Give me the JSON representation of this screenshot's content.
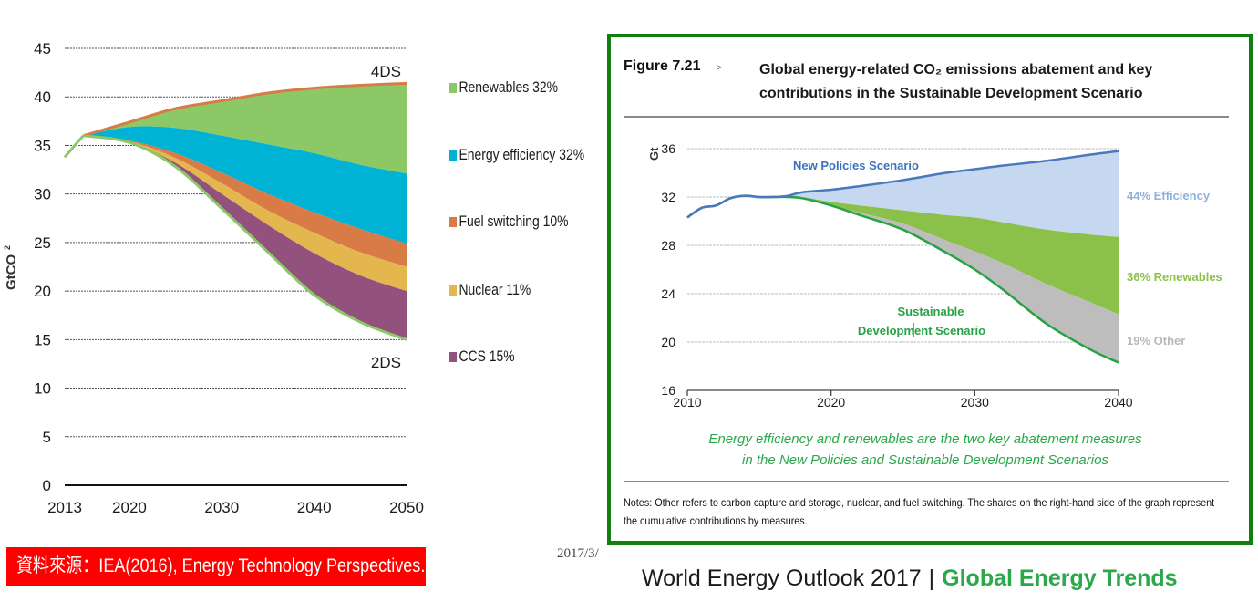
{
  "left_chart_source": "資料來源：IEA(2016), Energy Technology Perspectives.",
  "date_stamp": "2017/3/",
  "right_figure": {
    "figure_number": "Figure 7.21",
    "figure_arrow": "▹",
    "title_line1": "Global energy-related CO₂ emissions abatement and key",
    "title_line2": "contributions in the Sustainable Development Scenario",
    "caption_line1": "Energy efficiency and renewables are the two key abatement measures",
    "caption_line2": "in the New Policies and Sustainable Development Scenarios",
    "notes_text": "Notes: Other refers to carbon capture and storage, nuclear, and fuel switching. The shares on the right-hand side of the graph represent the cumulative contributions by measures."
  },
  "footer": {
    "left": "World Energy Outlook 2017",
    "separator": "|",
    "right": "Global Energy Trends"
  },
  "colors": {
    "renewables_left": "#8cc866",
    "efficiency_left": "#00b2d3",
    "fuel_switching": "#d97b46",
    "nuclear": "#e3b74e",
    "ccs": "#93517e",
    "frame_green": "#118011",
    "nps_line": "#4a78bd",
    "efficiency_right": "#c5d8ef",
    "renewables_right": "#8bc14a",
    "other_right": "#bdbdbd",
    "sds_line": "#27a244",
    "source_red": "#ff0000"
  },
  "chart_data": [
    {
      "type": "area",
      "title": "",
      "xlabel": "",
      "ylabel": "GtCO2",
      "xlim": [
        2013,
        2050
      ],
      "ylim": [
        0,
        45
      ],
      "yticks": [
        0,
        5,
        10,
        15,
        20,
        25,
        30,
        35,
        40,
        45
      ],
      "xticks": [
        2013,
        2020,
        2030,
        2040,
        2050
      ],
      "grid": true,
      "legend_position": "right",
      "x": [
        2013,
        2015,
        2020,
        2025,
        2030,
        2035,
        2040,
        2045,
        2050
      ],
      "historical": {
        "x": [
          2013,
          2015
        ],
        "values": [
          33.8,
          36.0
        ]
      },
      "scenario_lines": [
        {
          "name": "4DS",
          "values": [
            null,
            36.0,
            37.4,
            38.8,
            39.6,
            40.4,
            40.9,
            41.2,
            41.4
          ]
        },
        {
          "name": "2DS",
          "values": [
            null,
            36.0,
            35.3,
            32.8,
            28.5,
            24.0,
            19.6,
            16.8,
            15.0
          ]
        }
      ],
      "series_boundaries_note": "stacked bands between 4DS (top) and 2DS (bottom); values are upper/lower bounds of each band in GtCO2",
      "series": [
        {
          "name": "Renewables 32%",
          "key": "renewables",
          "upper": [
            null,
            36.0,
            37.4,
            38.8,
            39.6,
            40.4,
            40.9,
            41.2,
            41.4
          ],
          "lower": [
            null,
            36.0,
            36.9,
            36.8,
            36.0,
            35.1,
            34.2,
            33.0,
            32.1
          ]
        },
        {
          "name": "Energy efficiency 32%",
          "key": "efficiency",
          "upper": [
            null,
            36.0,
            36.9,
            36.8,
            36.0,
            35.1,
            34.2,
            33.0,
            32.1
          ],
          "lower": [
            null,
            36.0,
            35.5,
            34.2,
            32.2,
            30.0,
            28.1,
            26.4,
            24.9
          ]
        },
        {
          "name": "Fuel switching 10%",
          "key": "fuel_switching",
          "upper": [
            null,
            36.0,
            35.5,
            34.2,
            32.2,
            30.0,
            28.1,
            26.4,
            24.9
          ],
          "lower": [
            null,
            36.0,
            35.4,
            33.7,
            31.1,
            28.3,
            26.0,
            24.0,
            22.5
          ]
        },
        {
          "name": "Nuclear 11%",
          "key": "nuclear",
          "upper": [
            null,
            36.0,
            35.4,
            33.7,
            31.1,
            28.3,
            26.0,
            24.0,
            22.5
          ],
          "lower": [
            null,
            36.0,
            35.3,
            33.2,
            30.0,
            26.8,
            23.9,
            21.6,
            20.0
          ]
        },
        {
          "name": "CCS 15%",
          "key": "ccs",
          "upper": [
            null,
            36.0,
            35.3,
            33.2,
            30.0,
            26.8,
            23.9,
            21.6,
            20.0
          ],
          "lower": [
            null,
            36.0,
            35.3,
            32.8,
            28.5,
            24.0,
            19.6,
            16.8,
            15.0
          ]
        }
      ],
      "annotations": [
        "4DS",
        "2DS"
      ]
    },
    {
      "type": "area",
      "title": "Global energy-related CO₂ emissions abatement and key contributions in the Sustainable Development Scenario",
      "xlabel": "",
      "ylabel": "Gt",
      "xlim": [
        2010,
        2040
      ],
      "ylim": [
        16,
        36
      ],
      "yticks": [
        16,
        20,
        24,
        28,
        32,
        36
      ],
      "xticks": [
        2010,
        2020,
        2030,
        2040
      ],
      "grid": true,
      "x": [
        2010,
        2011,
        2012,
        2013,
        2014,
        2015,
        2016,
        2017,
        2018,
        2020,
        2022,
        2025,
        2028,
        2030,
        2032,
        2035,
        2038,
        2040
      ],
      "lines": [
        {
          "name": "New Policies Scenario",
          "values": [
            30.3,
            31.1,
            31.3,
            31.9,
            32.1,
            32.0,
            32.0,
            32.1,
            32.4,
            32.6,
            32.9,
            33.4,
            34.0,
            34.3,
            34.6,
            35.0,
            35.5,
            35.8
          ]
        },
        {
          "name": "Sustainable Development Scenario",
          "values": [
            30.3,
            31.1,
            31.3,
            31.9,
            32.1,
            32.0,
            32.0,
            32.0,
            31.9,
            31.3,
            30.5,
            29.3,
            27.4,
            26.0,
            24.3,
            21.5,
            19.4,
            18.3
          ]
        }
      ],
      "series": [
        {
          "name": "44% Efficiency",
          "upper": "New Policies Scenario",
          "lower_values": [
            30.3,
            31.1,
            31.3,
            31.9,
            32.1,
            32.0,
            32.0,
            32.1,
            32.0,
            31.6,
            31.3,
            30.9,
            30.5,
            30.3,
            29.9,
            29.3,
            28.9,
            28.7
          ]
        },
        {
          "name": "36% Renewables",
          "lower_values": [
            30.3,
            31.1,
            31.3,
            31.9,
            32.1,
            32.0,
            32.0,
            32.0,
            31.9,
            31.3,
            30.7,
            29.8,
            28.4,
            27.5,
            26.5,
            24.8,
            23.3,
            22.3
          ]
        },
        {
          "name": "19% Other",
          "lower": "Sustainable Development Scenario"
        }
      ],
      "annotations": [
        "New Policies Scenario",
        "Sustainable Development Scenario",
        "44% Efficiency",
        "36% Renewables",
        "19% Other"
      ]
    }
  ],
  "left_labels": {
    "ylabel": "GtCO",
    "ylabel_sub": "2",
    "top_label": "4DS",
    "bottom_label": "2DS",
    "legend": [
      "Renewables 32%",
      "Energy efficiency 32%",
      "Fuel switching 10%",
      "Nuclear 11%",
      "CCS 15%"
    ]
  },
  "right_labels": {
    "ylabel": "Gt",
    "nps_label": "New Policies Scenario",
    "sds_label_line1": "Sustainable",
    "sds_label_line2": "Development  Scenario",
    "share_efficiency": "44% Efficiency",
    "share_renewables": "36% Renewables",
    "share_other": "19% Other"
  }
}
